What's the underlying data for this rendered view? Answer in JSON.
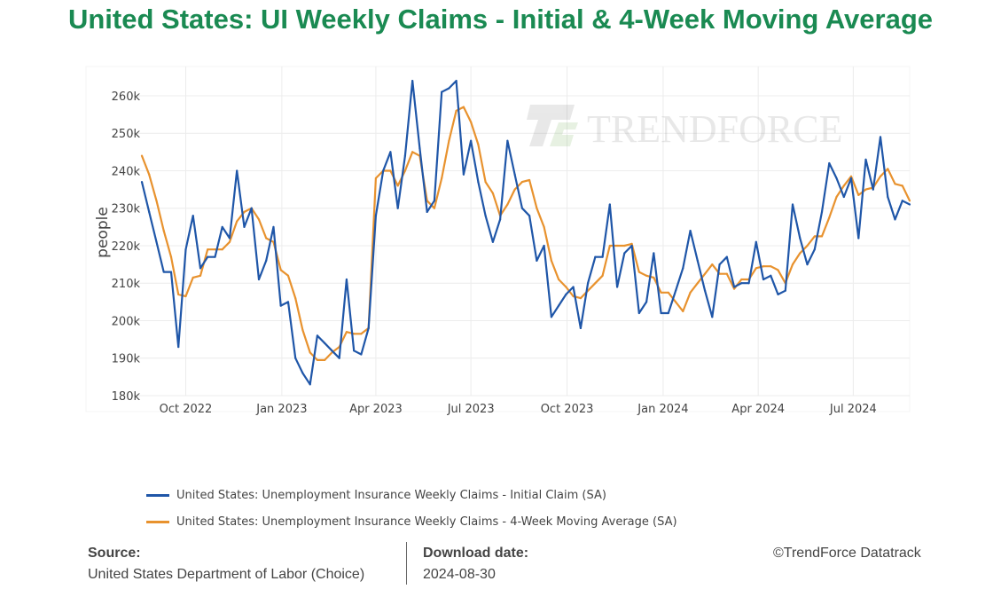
{
  "title": "United States: UI Weekly Claims - Initial & 4-Week Moving Average",
  "watermark": "TRENDFORCE",
  "chart_data": {
    "type": "line",
    "ylabel": "people",
    "ylim": [
      180,
      267.8
    ],
    "xlim": [
      "2022-08-20",
      "2024-08-24"
    ],
    "grid": true,
    "legend_position": "bottom",
    "y_ticks": [
      180,
      190,
      200,
      210,
      220,
      230,
      240,
      250,
      260
    ],
    "y_tick_labels": [
      "180k",
      "190k",
      "200k",
      "210k",
      "220k",
      "230k",
      "240k",
      "250k",
      "260k"
    ],
    "x_ticks": [
      "2022-10-01",
      "2023-01-01",
      "2023-04-01",
      "2023-07-01",
      "2023-10-01",
      "2024-01-01",
      "2024-04-01",
      "2024-07-01"
    ],
    "x_tick_labels": [
      "Oct 2022",
      "Jan 2023",
      "Apr 2023",
      "Jul 2023",
      "Oct 2023",
      "Jan 2024",
      "Apr 2024",
      "Jul 2024"
    ],
    "unit": "thousand people",
    "x": [
      "2022-08-20",
      "2022-08-27",
      "2022-09-03",
      "2022-09-10",
      "2022-09-17",
      "2022-09-24",
      "2022-10-01",
      "2022-10-08",
      "2022-10-15",
      "2022-10-22",
      "2022-10-29",
      "2022-11-05",
      "2022-11-12",
      "2022-11-19",
      "2022-11-26",
      "2022-12-03",
      "2022-12-10",
      "2022-12-17",
      "2022-12-24",
      "2022-12-31",
      "2023-01-07",
      "2023-01-14",
      "2023-01-21",
      "2023-01-28",
      "2023-02-04",
      "2023-02-11",
      "2023-02-18",
      "2023-02-25",
      "2023-03-04",
      "2023-03-11",
      "2023-03-18",
      "2023-03-25",
      "2023-04-01",
      "2023-04-08",
      "2023-04-15",
      "2023-04-22",
      "2023-04-29",
      "2023-05-06",
      "2023-05-13",
      "2023-05-20",
      "2023-05-27",
      "2023-06-03",
      "2023-06-10",
      "2023-06-17",
      "2023-06-24",
      "2023-07-01",
      "2023-07-08",
      "2023-07-15",
      "2023-07-22",
      "2023-07-29",
      "2023-08-05",
      "2023-08-12",
      "2023-08-19",
      "2023-08-26",
      "2023-09-02",
      "2023-09-09",
      "2023-09-16",
      "2023-09-23",
      "2023-09-30",
      "2023-10-07",
      "2023-10-14",
      "2023-10-21",
      "2023-10-28",
      "2023-11-04",
      "2023-11-11",
      "2023-11-18",
      "2023-11-25",
      "2023-12-02",
      "2023-12-09",
      "2023-12-16",
      "2023-12-23",
      "2023-12-30",
      "2024-01-06",
      "2024-01-13",
      "2024-01-20",
      "2024-01-27",
      "2024-02-03",
      "2024-02-10",
      "2024-02-17",
      "2024-02-24",
      "2024-03-02",
      "2024-03-09",
      "2024-03-16",
      "2024-03-23",
      "2024-03-30",
      "2024-04-06",
      "2024-04-13",
      "2024-04-20",
      "2024-04-27",
      "2024-05-04",
      "2024-05-11",
      "2024-05-18",
      "2024-05-25",
      "2024-06-01",
      "2024-06-08",
      "2024-06-15",
      "2024-06-22",
      "2024-06-29",
      "2024-07-06",
      "2024-07-13",
      "2024-07-20",
      "2024-07-27",
      "2024-08-03",
      "2024-08-10",
      "2024-08-17",
      "2024-08-24"
    ],
    "series": [
      {
        "name": "United States: Unemployment Insurance Weekly Claims - Initial Claim (SA)",
        "color": "#1f56a8",
        "values": [
          237,
          229,
          221,
          213,
          213,
          193,
          219,
          228,
          214,
          217,
          217,
          225,
          222,
          240,
          225,
          230,
          211,
          216,
          225,
          204,
          205,
          190,
          186,
          183,
          196,
          194,
          192,
          190,
          211,
          192,
          191,
          198,
          228,
          240,
          245,
          230,
          244,
          264,
          246,
          229,
          232,
          261,
          262,
          264,
          239,
          248,
          237,
          228,
          221,
          227,
          248,
          239,
          230,
          228,
          216,
          220,
          201,
          204,
          207,
          209,
          198,
          210,
          217,
          217,
          231,
          209,
          218,
          220,
          202,
          205,
          218,
          202,
          202,
          208,
          214,
          224,
          216,
          208,
          201,
          215,
          217,
          209,
          210,
          210,
          221,
          211,
          212,
          207,
          208,
          231,
          222,
          215,
          219,
          229,
          242,
          238,
          233,
          238,
          222,
          243,
          235,
          249,
          233,
          227,
          232,
          231
        ]
      },
      {
        "name": "United States: Unemployment Insurance Weekly Claims - 4-Week Moving Average (SA)",
        "color": "#e8922e",
        "values": [
          244,
          239,
          232,
          224,
          217,
          207,
          206.5,
          211.5,
          212,
          219,
          219,
          219,
          221,
          226.5,
          229,
          230,
          227,
          222,
          221,
          213.5,
          212,
          206,
          197.5,
          191.5,
          189.5,
          189.5,
          191.5,
          193,
          197,
          196.5,
          196.5,
          198,
          238,
          240,
          240,
          236,
          240,
          245,
          244,
          232,
          230,
          238,
          248,
          256,
          257,
          253,
          247,
          237,
          234,
          228,
          231,
          235,
          237,
          237.5,
          230,
          225,
          216,
          211,
          209,
          206.5,
          206,
          208,
          210,
          212,
          220,
          220,
          220,
          220.5,
          213,
          212,
          211.5,
          207.5,
          207.5,
          205,
          202.5,
          207.5,
          210,
          212.5,
          215,
          212.5,
          212.5,
          208.5,
          211,
          211,
          214,
          214.5,
          214.5,
          213.5,
          210,
          215,
          218,
          220,
          222.5,
          222.5,
          227.5,
          233,
          236,
          238.5,
          233.5,
          235,
          235.5,
          238.5,
          240.5,
          236.5,
          236,
          232
        ]
      }
    ]
  },
  "footer": {
    "source_label": "Source:",
    "source_value": "United States Department of Labor (Choice)",
    "download_label": "Download date:",
    "download_value": "2024-08-30",
    "copyright": "©TrendForce Datatrack"
  }
}
